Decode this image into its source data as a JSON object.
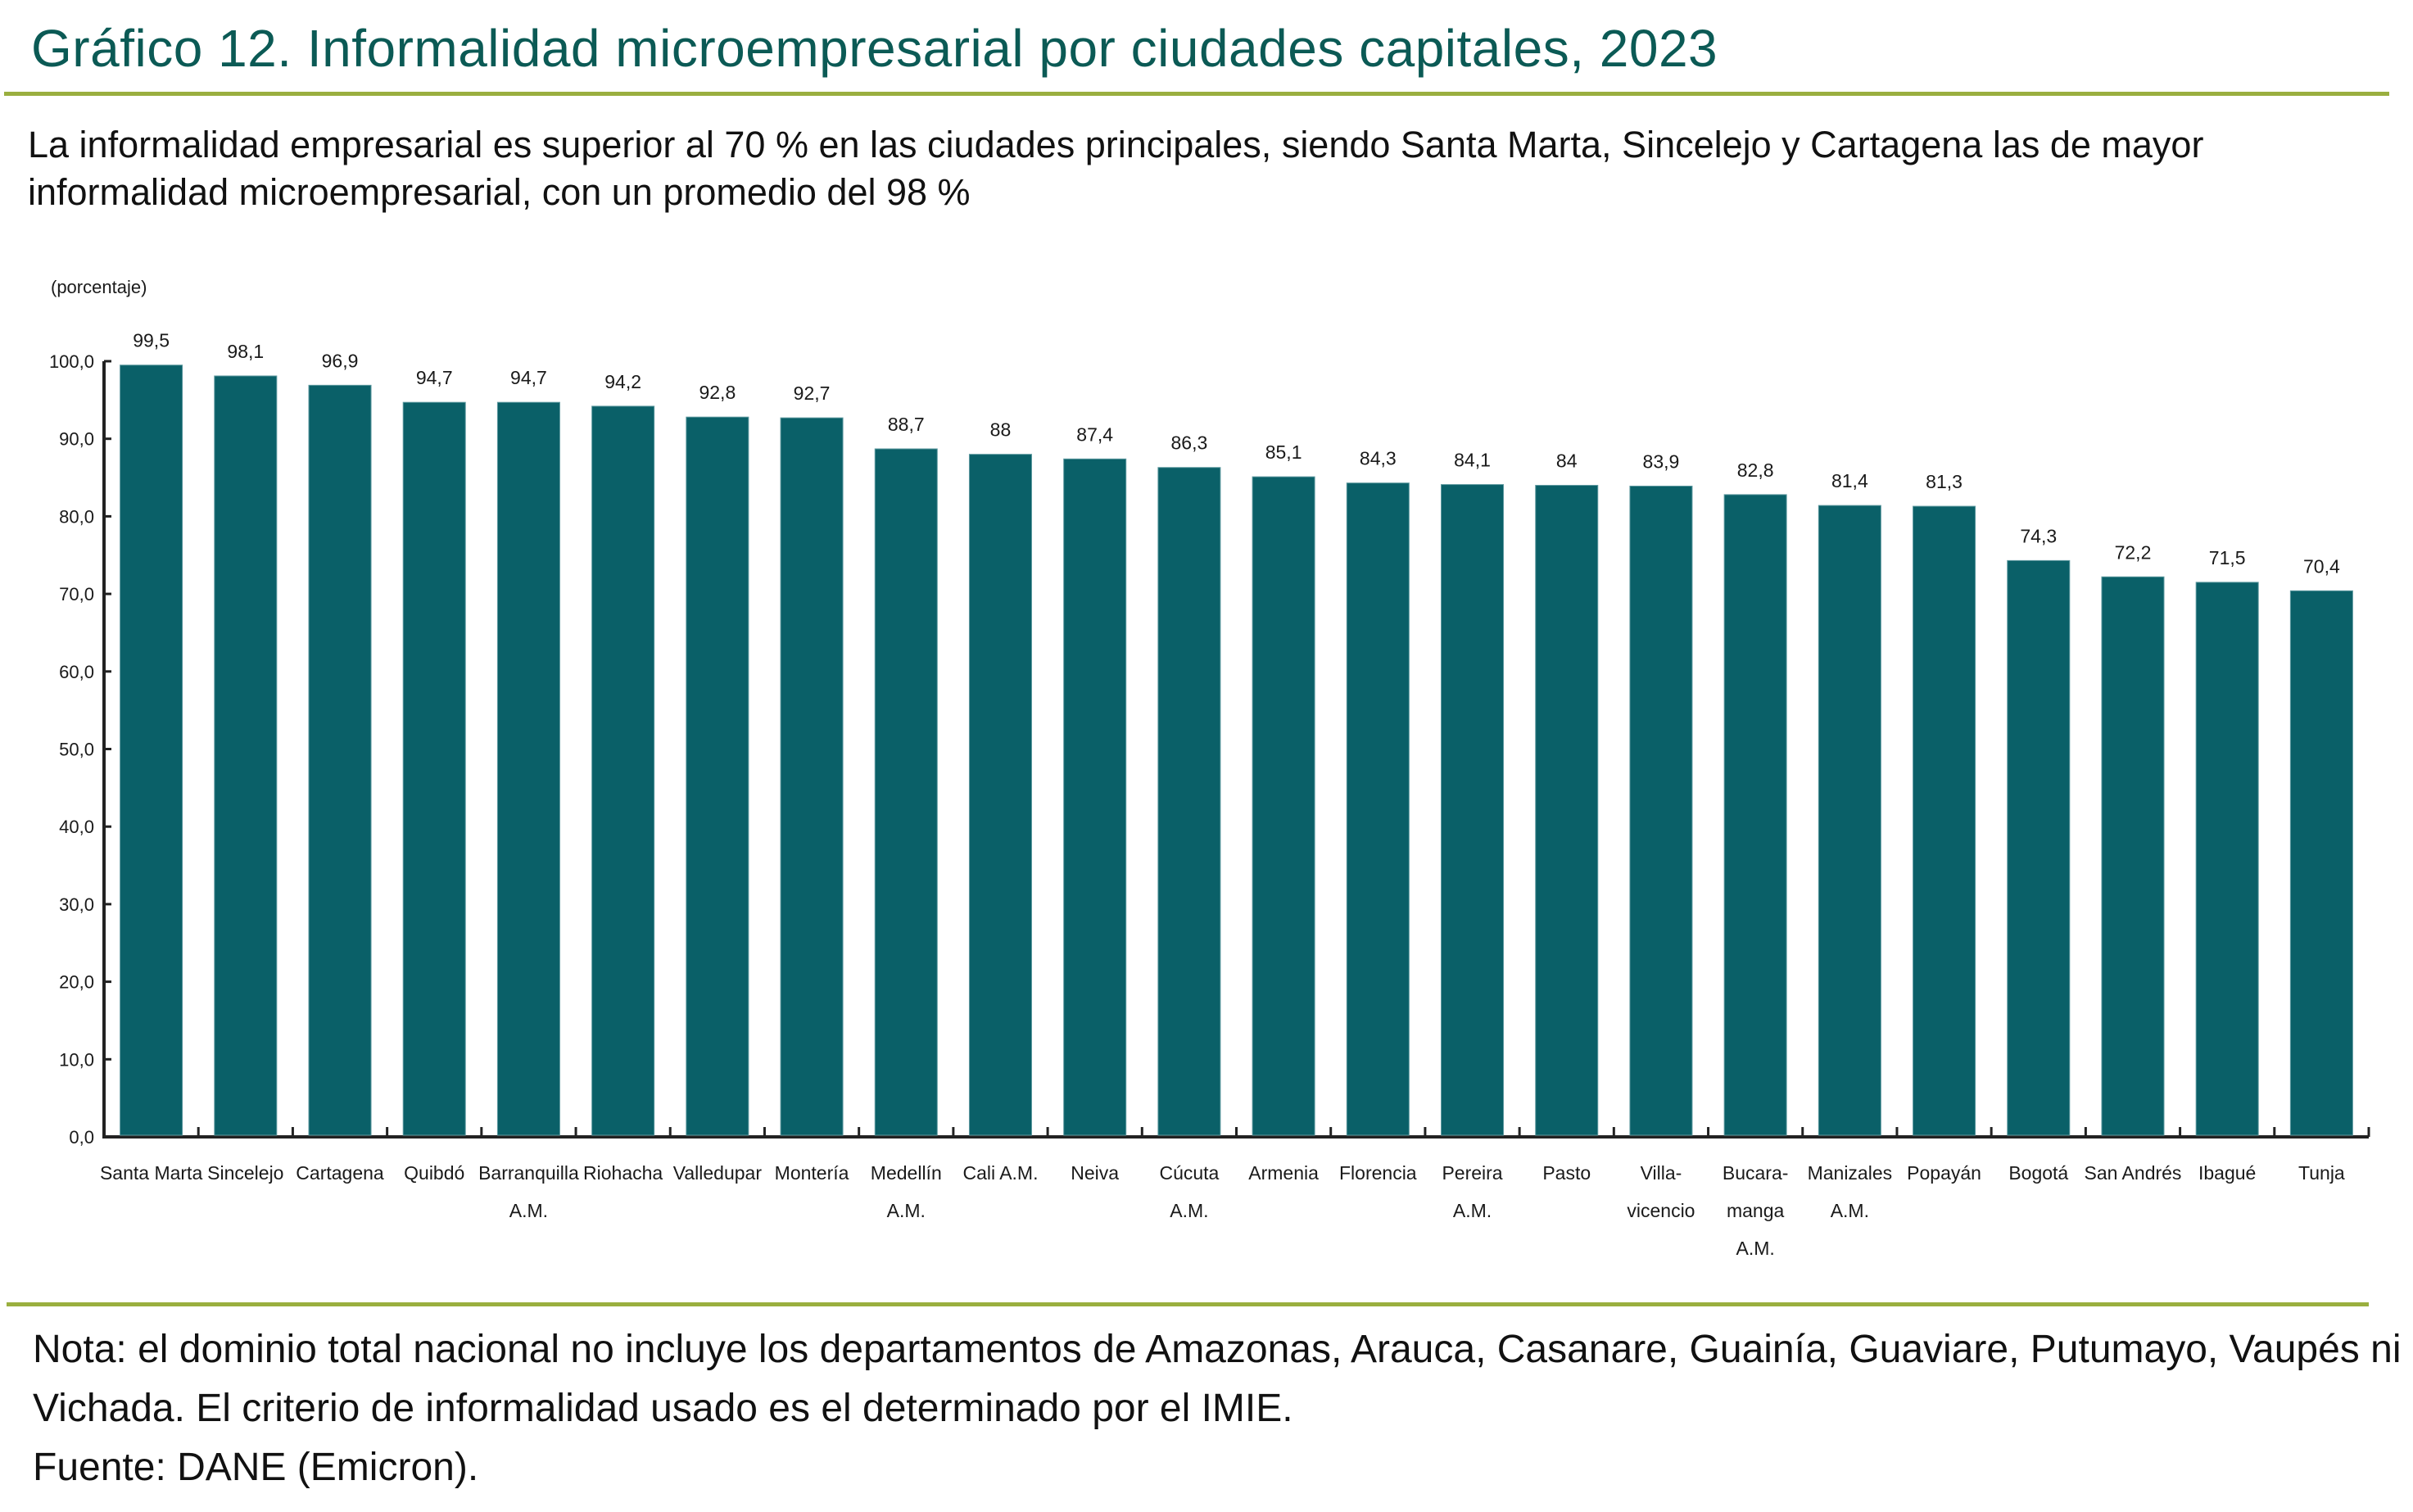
{
  "header": {
    "title": "Gráfico 12. Informalidad microempresarial por ciudades capitales, 2023",
    "subtitle": "La informalidad empresarial es superior al 70 % en las ciudades principales, siendo Santa Marta, Sincelejo y Cartagena las de mayor informalidad microempresarial, con un promedio del 98 %"
  },
  "footer": {
    "note_line1": "Nota: el dominio total nacional no incluye los departamentos de Amazonas, Arauca, Casanare, Guainía, Guaviare, Putumayo, Vaupés ni",
    "note_line2": "Vichada. El criterio de informalidad usado es el determinado por el IMIE.",
    "source": "Fuente: DANE (Emicron)."
  },
  "colors": {
    "bar": "#0a6068",
    "title": "#0b5a55",
    "rule": "#9aaf3f",
    "axis": "#222222"
  },
  "chart_data": {
    "type": "bar",
    "title": "Gráfico 12. Informalidad microempresarial por ciudades capitales, 2023",
    "xlabel": "",
    "ylabel": "(porcentaje)",
    "ylim": [
      0,
      100
    ],
    "yticks": [
      0,
      10,
      20,
      30,
      40,
      50,
      60,
      70,
      80,
      90,
      100
    ],
    "ytick_labels": [
      "0,0",
      "10,0",
      "20,0",
      "30,0",
      "40,0",
      "50,0",
      "60,0",
      "70,0",
      "80,0",
      "90,0",
      "100,0"
    ],
    "grid": false,
    "legend": "none",
    "categories": [
      [
        "Santa Marta"
      ],
      [
        "Sincelejo"
      ],
      [
        "Cartagena"
      ],
      [
        "Quibdó"
      ],
      [
        "Barranquilla",
        "A.M."
      ],
      [
        "Riohacha"
      ],
      [
        "Valledupar"
      ],
      [
        "Montería"
      ],
      [
        "Medellín",
        "A.M."
      ],
      [
        "Cali A.M."
      ],
      [
        "Neiva"
      ],
      [
        "Cúcuta",
        "A.M."
      ],
      [
        "Armenia"
      ],
      [
        "Florencia"
      ],
      [
        "Pereira",
        "A.M."
      ],
      [
        "Pasto"
      ],
      [
        "Villa-",
        "vicencio"
      ],
      [
        "Bucara-",
        "manga",
        "A.M."
      ],
      [
        "Manizales",
        "A.M."
      ],
      [
        "Popayán"
      ],
      [
        "Bogotá"
      ],
      [
        "San Andrés"
      ],
      [
        "Ibagué"
      ],
      [
        "Tunja"
      ]
    ],
    "values": [
      99.5,
      98.1,
      96.9,
      94.7,
      94.7,
      94.2,
      92.8,
      92.7,
      88.7,
      88.0,
      87.4,
      86.3,
      85.1,
      84.3,
      84.1,
      84.0,
      83.9,
      82.8,
      81.4,
      81.3,
      74.3,
      72.2,
      71.5,
      70.4
    ],
    "value_labels": [
      "99,5",
      "98,1",
      "96,9",
      "94,7",
      "94,7",
      "94,2",
      "92,8",
      "92,7",
      "88,7",
      "88",
      "87,4",
      "86,3",
      "85,1",
      "84,3",
      "84,1",
      "84",
      "83,9",
      "82,8",
      "81,4",
      "81,3",
      "74,3",
      "72,2",
      "71,5",
      "70,4"
    ]
  }
}
